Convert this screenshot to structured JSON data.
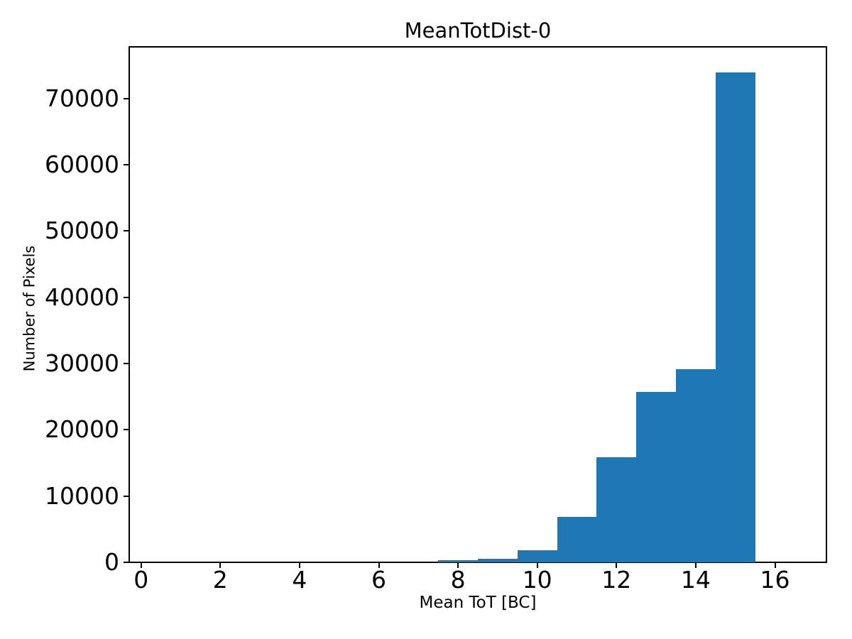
{
  "chart_data": {
    "type": "bar",
    "subtype": "histogram",
    "title": "MeanTotDist-0",
    "xlabel": "Mean ToT [BC]",
    "ylabel": "Number of Pixels",
    "bar_color": "#1f77b4",
    "axis_color": "#000000",
    "background_color": "#ffffff",
    "xlim": [
      -0.3,
      17.3
    ],
    "ylim": [
      0,
      77800
    ],
    "xticks": [
      0,
      2,
      4,
      6,
      8,
      10,
      12,
      14,
      16
    ],
    "yticks": [
      0,
      10000,
      20000,
      30000,
      40000,
      50000,
      60000,
      70000
    ],
    "bin_edges": [
      7.5,
      8.5,
      9.5,
      10.5,
      11.5,
      12.5,
      13.5,
      14.5,
      15.5
    ],
    "counts": [
      350,
      550,
      1800,
      6900,
      15900,
      25700,
      29200,
      74000
    ],
    "grid": false,
    "legend_position": "none"
  }
}
